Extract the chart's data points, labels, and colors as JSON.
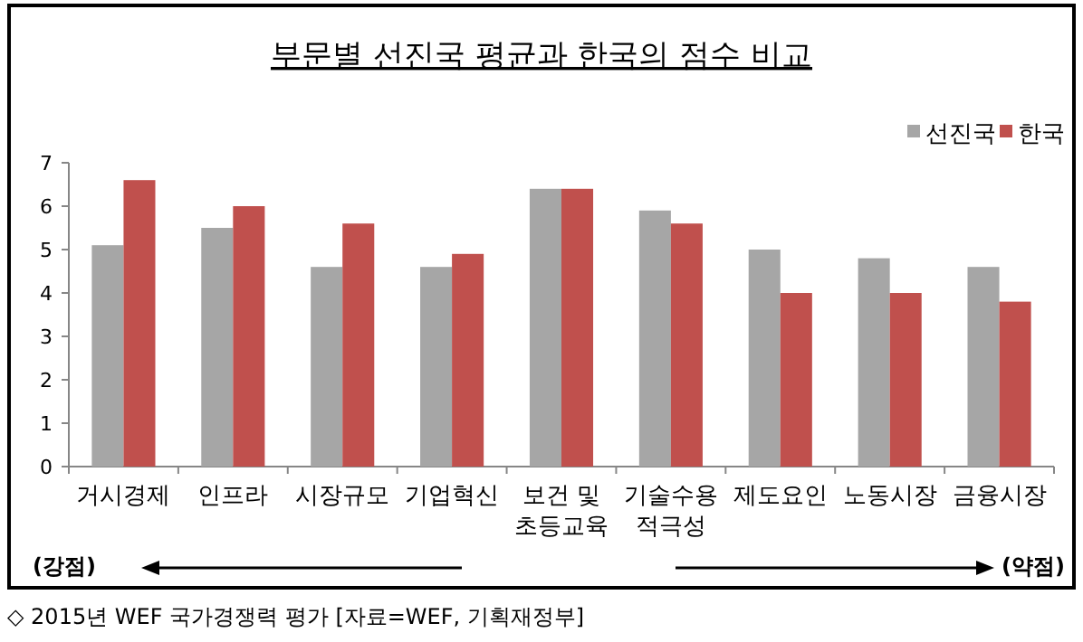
{
  "chart_data": {
    "type": "bar",
    "title": "부문별 선진국 평균과 한국의 점수 비교",
    "categories": [
      "거시경제",
      "인프라",
      "시장규모",
      "기업혁신",
      "보건 및\n초등교육",
      "기술수용\n적극성",
      "제도요인",
      "노동시장",
      "금융시장"
    ],
    "series": [
      {
        "name": "선진국",
        "color": "#a6a6a6",
        "values": [
          5.1,
          5.5,
          4.6,
          4.6,
          6.4,
          5.9,
          5.0,
          4.8,
          4.6
        ]
      },
      {
        "name": "한국",
        "color": "#c0504d",
        "values": [
          6.6,
          6.0,
          5.6,
          4.9,
          6.4,
          5.6,
          4.0,
          4.0,
          3.8
        ]
      }
    ],
    "ylim": [
      0,
      7
    ],
    "yticks": [
      0,
      1,
      2,
      3,
      4,
      5,
      6,
      7
    ],
    "grid": false,
    "legend": "top right",
    "annotations": [
      "(강점)",
      "(약점)",
      "◇ 2015년 WEF 국가경쟁력 평가 [자료=WEF, 기획재정부]"
    ]
  }
}
